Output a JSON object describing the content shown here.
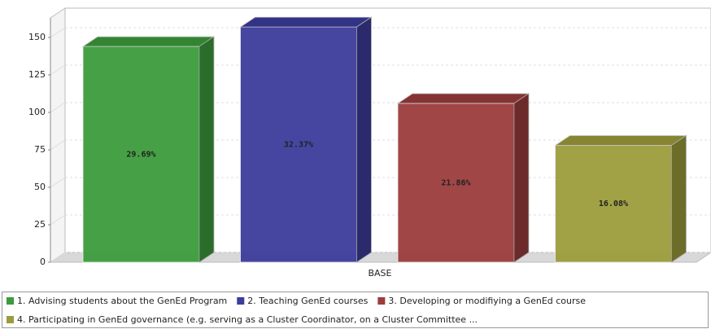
{
  "chart_data": {
    "type": "bar3d",
    "categories": [
      "BASE"
    ],
    "series": [
      {
        "name": "1. Advising students about the GenEd Program",
        "color": "#3c9c3c",
        "values": [
          144
        ],
        "data_labels": [
          "29.69%"
        ]
      },
      {
        "name": "2. Teaching GenEd courses",
        "color": "#3c3c9c",
        "values": [
          157
        ],
        "data_labels": [
          "32.37%"
        ]
      },
      {
        "name": "3. Developing or modifiying a GenEd course",
        "color": "#9c3c3c",
        "values": [
          106
        ],
        "data_labels": [
          "21.86%"
        ]
      },
      {
        "name": "4. Participating in GenEd governance (e.g. serving as a Cluster Coordinator, on a Cluster Committee  ...",
        "color": "#9c9c3c",
        "values": [
          78
        ],
        "data_labels": [
          "16.08%"
        ]
      }
    ],
    "ylim": [
      0,
      150
    ],
    "yticks": [
      0,
      25,
      50,
      75,
      100,
      125,
      150
    ],
    "grid": true,
    "legend": "bottom"
  }
}
